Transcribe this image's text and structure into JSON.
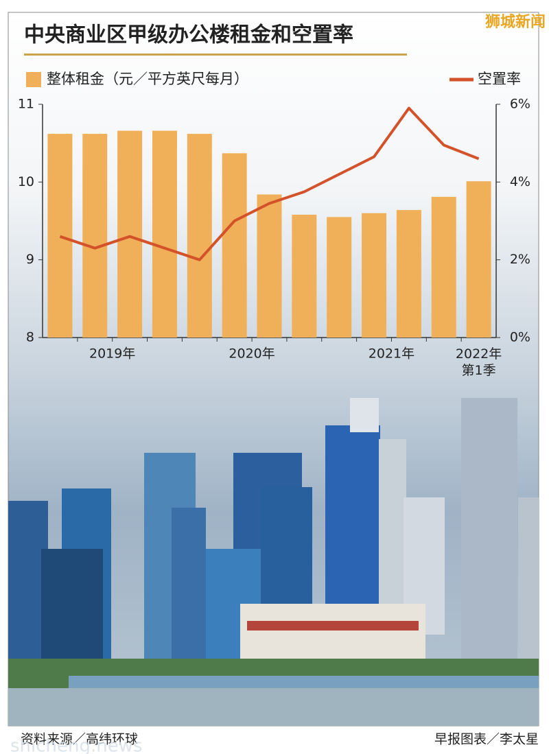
{
  "watermark_top": "狮城新闻",
  "watermark_bottom": "shicheng.news",
  "chart_data": {
    "type": "bar-line",
    "title": "中央商业区甲级办公楼租金和空置率",
    "categories": [
      null,
      "2019年",
      null,
      null,
      null,
      "2020年",
      null,
      null,
      null,
      "2021年",
      null,
      null,
      "2022年\n第1季"
    ],
    "series": [
      {
        "name": "整体租金（元／平方英尺每月）",
        "type": "bar",
        "color": "#f0b05a",
        "axis": "y",
        "values": [
          10.62,
          10.62,
          10.66,
          10.66,
          10.62,
          10.37,
          9.84,
          9.58,
          9.55,
          9.6,
          9.64,
          9.81,
          10.01
        ]
      },
      {
        "name": "空置率",
        "type": "line",
        "color": "#d4522a",
        "axis": "y2",
        "values": [
          2.6,
          2.3,
          2.6,
          2.3,
          2.0,
          3.0,
          3.45,
          3.75,
          4.2,
          4.65,
          5.9,
          4.95,
          4.6
        ]
      }
    ],
    "ylim": [
      8,
      11
    ],
    "yticks": [
      8,
      9,
      10,
      11
    ],
    "y2lim": [
      0,
      6
    ],
    "y2ticks": [
      {
        "value": 0,
        "label": "0%"
      },
      {
        "value": 2,
        "label": "2%"
      },
      {
        "value": 4,
        "label": "4%"
      },
      {
        "value": 6,
        "label": "6%"
      }
    ],
    "legend": "top"
  },
  "footer": {
    "source": "资料来源／高纬环球",
    "credit": "早报图表／李太星"
  }
}
